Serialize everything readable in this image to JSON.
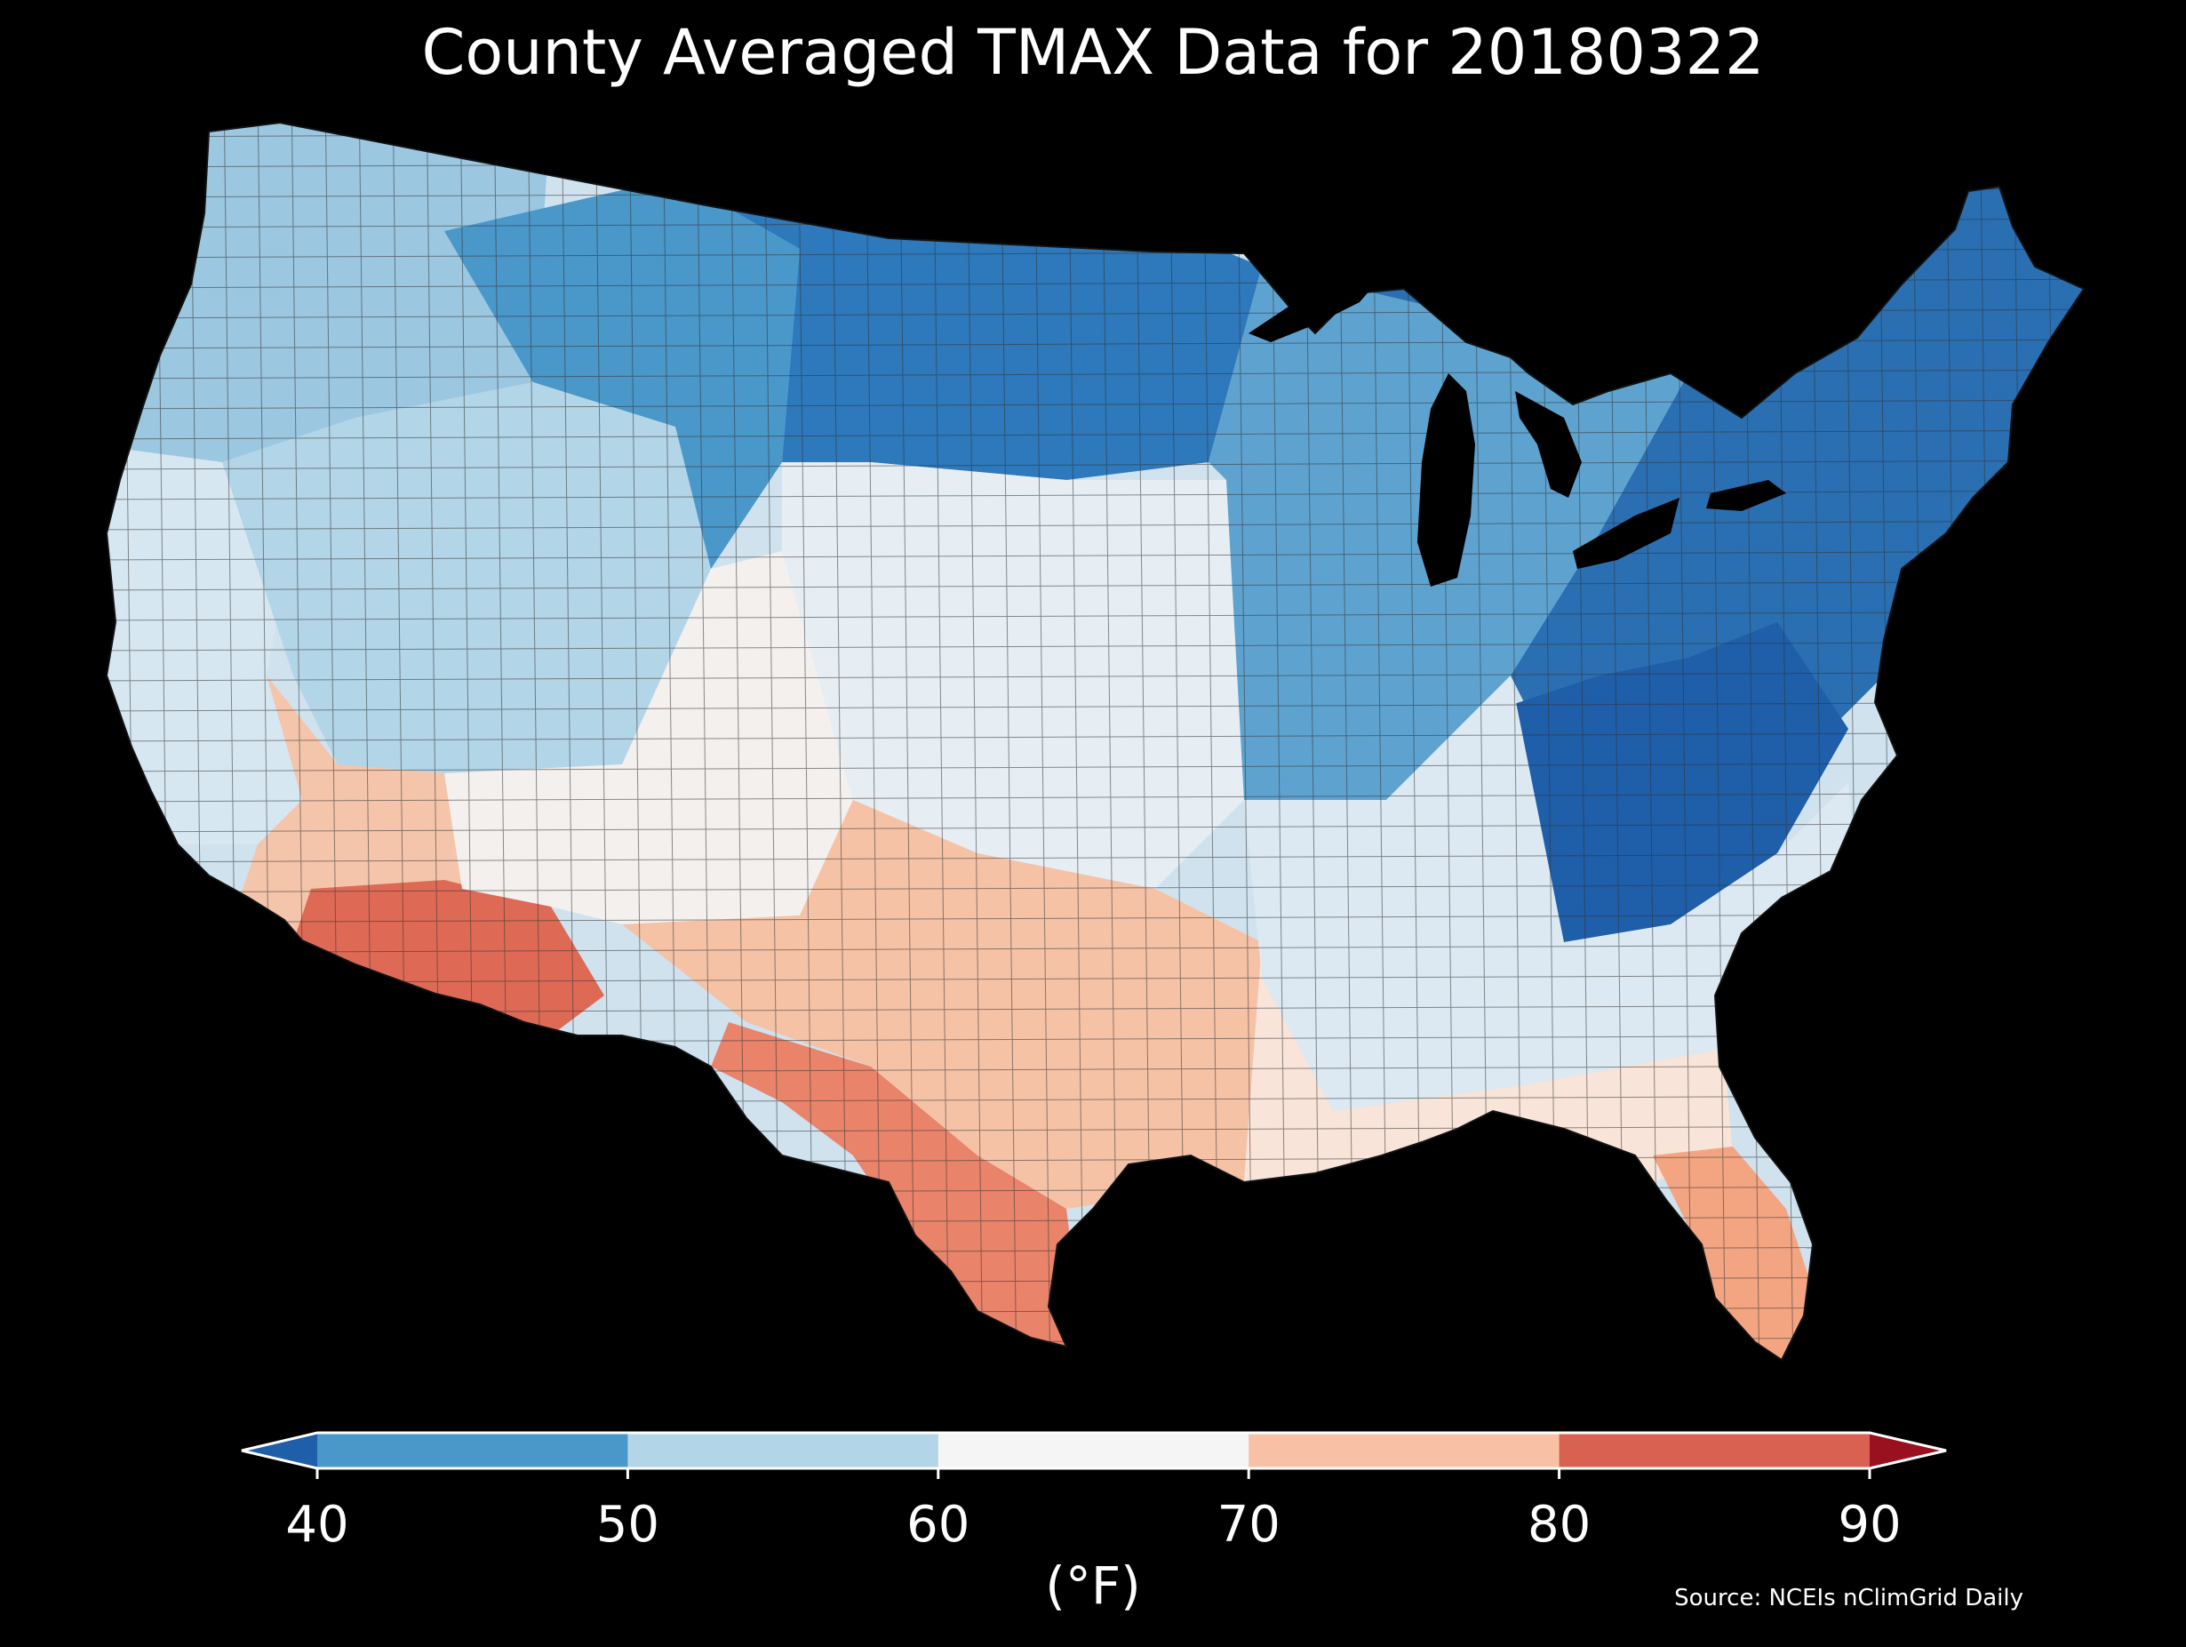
{
  "title": "County Averaged TMAX Data for 20180322",
  "source": "Source: NCEIs nClimGrid Daily",
  "colorbar": {
    "unit_label": "(°F)",
    "ticks": [
      "40",
      "50",
      "60",
      "70",
      "80",
      "90"
    ],
    "under_color": "#1f5ea8",
    "over_color": "#99101f",
    "bins": [
      {
        "from": 40,
        "to": 50,
        "color": "#4a97c9"
      },
      {
        "from": 50,
        "to": 60,
        "color": "#b3d5e8"
      },
      {
        "from": 60,
        "to": 70,
        "color": "#f5f5f5"
      },
      {
        "from": 70,
        "to": 80,
        "color": "#f8c0a4"
      },
      {
        "from": 80,
        "to": 90,
        "color": "#d96151"
      }
    ]
  },
  "regions": [
    {
      "id": "pacific-northwest",
      "color": "#9cc7e0"
    },
    {
      "id": "california-coast",
      "color": "#d7e7f1"
    },
    {
      "id": "great-basin",
      "color": "#b3d5e8"
    },
    {
      "id": "northern-rockies",
      "color": "#4a97c9"
    },
    {
      "id": "southern-california",
      "color": "#f4c5aa"
    },
    {
      "id": "arizona-desert",
      "color": "#de6a56"
    },
    {
      "id": "southern-rockies",
      "color": "#f3f0ee"
    },
    {
      "id": "northern-plains",
      "color": "#2d79bb"
    },
    {
      "id": "central-plains",
      "color": "#e6eef4"
    },
    {
      "id": "southern-plains",
      "color": "#f6c2a6"
    },
    {
      "id": "south-texas",
      "color": "#e9836a"
    },
    {
      "id": "midwest",
      "color": "#5ea3d0"
    },
    {
      "id": "great-lakes-northeast",
      "color": "#2a6fb2"
    },
    {
      "id": "ohio-valley",
      "color": "#1f5ea8"
    },
    {
      "id": "southeast",
      "color": "#dce9f2"
    },
    {
      "id": "gulf-coast",
      "color": "#f8e4d8"
    },
    {
      "id": "florida",
      "color": "#f3a582"
    }
  ]
}
